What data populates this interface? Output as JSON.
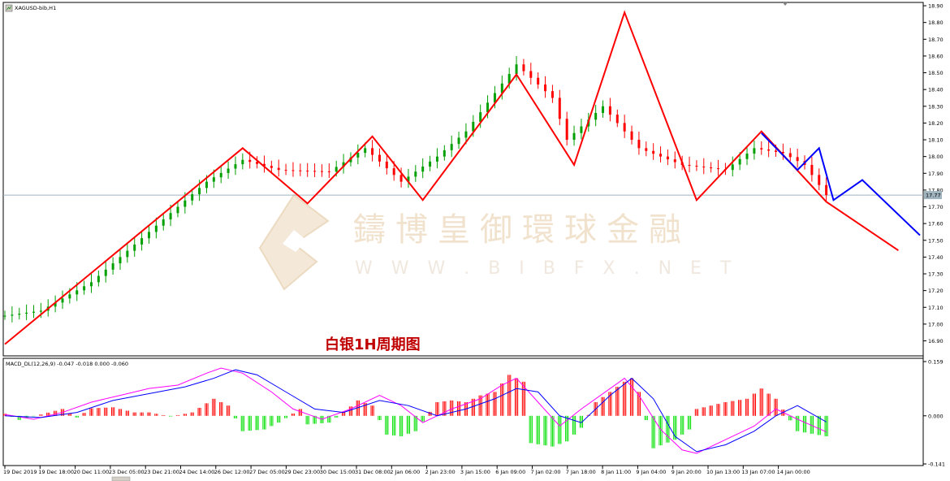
{
  "window": {
    "title": "XAGUSD-bib,H1"
  },
  "watermark": {
    "brand": "鑄博皇御環球金融",
    "url": "W W W . B I B F X . N E T"
  },
  "annotation": {
    "text": "白银1H周期图"
  },
  "chart_data": [
    {
      "type": "line",
      "title": "XAGUSD-bib,H1",
      "symbol": "XAGUSD-bib",
      "timeframe": "H1",
      "ylim": [
        16.82,
        18.91
      ],
      "y_ticks": [
        "18.90",
        "18.80",
        "18.70",
        "18.60",
        "18.50",
        "18.40",
        "18.30",
        "18.20",
        "18.10",
        "18.00",
        "17.90",
        "17.80",
        "17.70",
        "17.60",
        "17.50",
        "17.40",
        "17.30",
        "17.20",
        "17.10",
        "17.00",
        "16.90"
      ],
      "y_tick_values": [
        18.9,
        18.8,
        18.7,
        18.6,
        18.5,
        18.4,
        18.3,
        18.2,
        18.1,
        18.0,
        17.9,
        17.8,
        17.7,
        17.6,
        17.5,
        17.4,
        17.3,
        17.2,
        17.1,
        17.0,
        16.9
      ],
      "current_price": "17.77",
      "current_price_value": 17.77,
      "x_ticks": [
        "19 Dec 2019",
        "19 Dec 18:00",
        "20 Dec 11:00",
        "23 Dec 05:00",
        "23 Dec 21:00",
        "24 Dec 14:00",
        "26 Dec 12:00",
        "27 Dec 05:00",
        "29 Dec 23:00",
        "30 Dec 15:00",
        "31 Dec 08:00",
        "2 Jan 06:00",
        "2 Jan 23:00",
        "3 Jan 15:00",
        "6 Jan 09:00",
        "7 Jan 02:00",
        "7 Jan 18:00",
        "8 Jan 11:00",
        "9 Jan 04:00",
        "9 Jan 20:00",
        "10 Jan 13:00",
        "13 Jan 07:00",
        "14 Jan 00:00"
      ],
      "price_series": [
        {
          "name": "",
          "color": "#ff0000",
          "points": [
            [
              0,
              16.88
            ],
            [
              12,
              17.05
            ],
            [
              33,
              17.8
            ],
            [
              45,
              17.8
            ],
            [
              50,
              17.95
            ],
            [
              55,
              17.75
            ],
            [
              71,
              18.05
            ],
            [
              78,
              17.92
            ],
            [
              90,
              18.0
            ],
            [
              104,
              17.99
            ],
            [
              111,
              18.02
            ],
            [
              120,
              17.75
            ]
          ]
        },
        {
          "name": "",
          "color": "#00a000",
          "points": [
            [
              0,
              17.05
            ],
            [
              5,
              17.08
            ],
            [
              12,
              17.25
            ],
            [
              20,
              17.55
            ],
            [
              28,
              17.85
            ],
            [
              33,
              17.98
            ],
            [
              38,
              17.92
            ],
            [
              45,
              17.91
            ],
            [
              50,
              18.05
            ],
            [
              55,
              17.85
            ],
            [
              60,
              18.0
            ],
            [
              64,
              18.15
            ],
            [
              71,
              18.55
            ],
            [
              76,
              18.35
            ],
            [
              78,
              18.1
            ],
            [
              83,
              18.3
            ],
            [
              88,
              18.05
            ],
            [
              94,
              17.95
            ],
            [
              100,
              17.92
            ],
            [
              104,
              18.05
            ],
            [
              108,
              18.02
            ],
            [
              111,
              17.95
            ],
            [
              114,
              17.77
            ]
          ]
        }
      ],
      "zigzag_red": [
        [
          0,
          16.88
        ],
        [
          33,
          18.05
        ],
        [
          42,
          17.72
        ],
        [
          51,
          18.12
        ],
        [
          58,
          17.74
        ],
        [
          71,
          18.49
        ],
        [
          79,
          17.95
        ],
        [
          86,
          18.86
        ],
        [
          96,
          17.74
        ],
        [
          105,
          18.15
        ],
        [
          114,
          17.73
        ],
        [
          124,
          17.44
        ]
      ],
      "zigzag_blue": [
        [
          105,
          18.14
        ],
        [
          110,
          17.92
        ],
        [
          113,
          18.05
        ],
        [
          115,
          17.74
        ],
        [
          119,
          17.86
        ],
        [
          127,
          17.53
        ]
      ]
    },
    {
      "type": "bar",
      "title": "MACD_DL(12,26,9) -0.047 -0.018 0.000 -0.060",
      "ylim": [
        -0.141,
        0.159
      ],
      "y_ticks": [
        "0.159",
        "0.000",
        "-0.141"
      ],
      "y_tick_values": [
        0.159,
        0.0,
        -0.141
      ],
      "histogram_points": [
        [
          0,
          0.006
        ],
        [
          2,
          -0.012
        ],
        [
          5,
          0.004
        ],
        [
          8,
          0.02
        ],
        [
          10,
          -0.005
        ],
        [
          12,
          0.022
        ],
        [
          15,
          0.025
        ],
        [
          18,
          0.01
        ],
        [
          20,
          0.01
        ],
        [
          23,
          -0.002
        ],
        [
          26,
          0.01
        ],
        [
          29,
          0.05
        ],
        [
          31,
          0.03
        ],
        [
          33,
          -0.045
        ],
        [
          36,
          -0.04
        ],
        [
          38,
          -0.02
        ],
        [
          41,
          0.02
        ],
        [
          42,
          -0.025
        ],
        [
          45,
          -0.02
        ],
        [
          47,
          0.01
        ],
        [
          49,
          0.045
        ],
        [
          51,
          0.03
        ],
        [
          53,
          -0.055
        ],
        [
          55,
          -0.06
        ],
        [
          57,
          -0.045
        ],
        [
          60,
          0.04
        ],
        [
          62,
          0.045
        ],
        [
          64,
          0.04
        ],
        [
          66,
          0.06
        ],
        [
          68,
          0.07
        ],
        [
          70,
          0.12
        ],
        [
          72,
          0.1
        ],
        [
          73,
          -0.08
        ],
        [
          76,
          -0.09
        ],
        [
          78,
          -0.075
        ],
        [
          80,
          -0.035
        ],
        [
          82,
          0.04
        ],
        [
          84,
          0.07
        ],
        [
          86,
          0.1
        ],
        [
          87,
          0.11
        ],
        [
          88,
          0.07
        ],
        [
          90,
          -0.095
        ],
        [
          93,
          -0.07
        ],
        [
          95,
          -0.04
        ],
        [
          96,
          0.02
        ],
        [
          98,
          0.03
        ],
        [
          100,
          0.04
        ],
        [
          103,
          0.05
        ],
        [
          105,
          0.08
        ],
        [
          107,
          0.05
        ],
        [
          110,
          -0.045
        ],
        [
          114,
          -0.06
        ]
      ],
      "series": [
        {
          "name": "",
          "color": "#ff00ff",
          "points": [
            [
              0,
              0.004
            ],
            [
              4,
              -0.01
            ],
            [
              8,
              0.01
            ],
            [
              12,
              0.04
            ],
            [
              16,
              0.06
            ],
            [
              20,
              0.08
            ],
            [
              24,
              0.09
            ],
            [
              28,
              0.125
            ],
            [
              30,
              0.14
            ],
            [
              33,
              0.125
            ],
            [
              37,
              0.07
            ],
            [
              40,
              0.02
            ],
            [
              44,
              -0.01
            ],
            [
              48,
              0.02
            ],
            [
              52,
              0.06
            ],
            [
              55,
              0.03
            ],
            [
              58,
              -0.02
            ],
            [
              62,
              0.02
            ],
            [
              66,
              0.05
            ],
            [
              69,
              0.09
            ],
            [
              71,
              0.11
            ],
            [
              74,
              0.04
            ],
            [
              77,
              -0.03
            ],
            [
              80,
              0.02
            ],
            [
              84,
              0.08
            ],
            [
              86,
              0.11
            ],
            [
              88,
              0.06
            ],
            [
              91,
              -0.04
            ],
            [
              94,
              -0.1
            ],
            [
              96,
              -0.11
            ],
            [
              100,
              -0.07
            ],
            [
              104,
              -0.03
            ],
            [
              107,
              0.02
            ],
            [
              110,
              -0.01
            ],
            [
              114,
              -0.047
            ]
          ]
        },
        {
          "name": "",
          "color": "#0000ff",
          "points": [
            [
              0,
              0.0
            ],
            [
              5,
              -0.005
            ],
            [
              10,
              0.01
            ],
            [
              15,
              0.045
            ],
            [
              20,
              0.065
            ],
            [
              25,
              0.085
            ],
            [
              29,
              0.11
            ],
            [
              32,
              0.135
            ],
            [
              35,
              0.12
            ],
            [
              39,
              0.07
            ],
            [
              43,
              0.02
            ],
            [
              47,
              0.01
            ],
            [
              52,
              0.045
            ],
            [
              56,
              0.03
            ],
            [
              60,
              0.0
            ],
            [
              64,
              0.02
            ],
            [
              68,
              0.05
            ],
            [
              71,
              0.08
            ],
            [
              74,
              0.07
            ],
            [
              77,
              0.0
            ],
            [
              80,
              -0.02
            ],
            [
              84,
              0.06
            ],
            [
              87,
              0.11
            ],
            [
              90,
              0.05
            ],
            [
              93,
              -0.06
            ],
            [
              96,
              -0.105
            ],
            [
              100,
              -0.085
            ],
            [
              104,
              -0.045
            ],
            [
              107,
              0.0
            ],
            [
              110,
              0.03
            ],
            [
              114,
              -0.018
            ]
          ]
        }
      ]
    }
  ]
}
